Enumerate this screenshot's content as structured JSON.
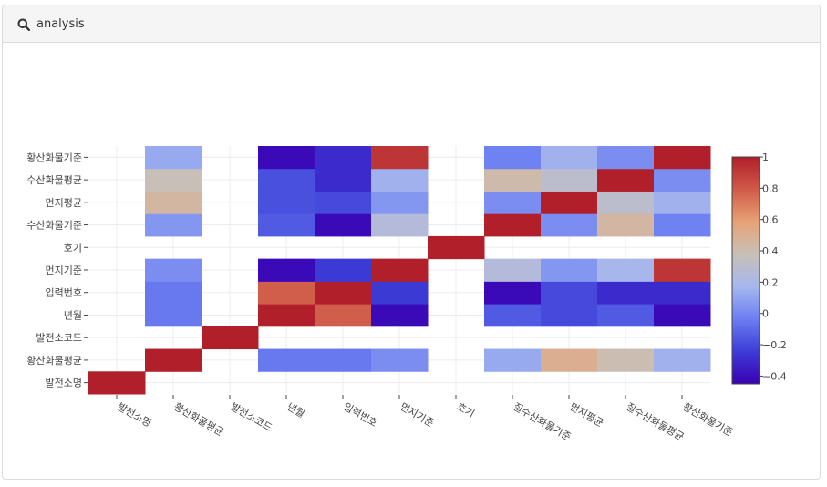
{
  "panel": {
    "title": "analysis",
    "icon": "search-icon"
  },
  "chart_data": {
    "type": "heatmap",
    "x": [
      "발전소명",
      "황산화물평균",
      "발전소코드",
      "년월",
      "입력번호",
      "먼지기준",
      "호기",
      "질수산화물기준",
      "먼지평균",
      "질수산화물평균",
      "황산화물기준"
    ],
    "y": [
      "발전소명",
      "황산화물평균",
      "발전소코드",
      "년월",
      "입력번호",
      "먼지기준",
      "호기",
      "수산화물기준",
      "먼지평균",
      "수산화물평균",
      "황산화물기준"
    ],
    "z": [
      [
        1,
        null,
        null,
        null,
        null,
        null,
        null,
        null,
        null,
        null,
        null
      ],
      [
        null,
        1,
        null,
        -0.05,
        -0.05,
        0.02,
        null,
        0.12,
        0.5,
        0.4,
        0.15
      ],
      [
        null,
        null,
        1,
        null,
        null,
        null,
        null,
        null,
        null,
        null,
        null
      ],
      [
        null,
        -0.05,
        null,
        1,
        0.78,
        -0.42,
        null,
        -0.15,
        -0.2,
        -0.15,
        -0.42
      ],
      [
        null,
        -0.05,
        null,
        0.78,
        1,
        -0.25,
        null,
        -0.42,
        -0.2,
        -0.3,
        -0.3
      ],
      [
        null,
        0.02,
        null,
        -0.42,
        -0.25,
        1,
        null,
        0.25,
        0.05,
        0.18,
        0.92
      ],
      [
        null,
        null,
        null,
        null,
        null,
        null,
        1,
        null,
        null,
        null,
        null
      ],
      [
        null,
        0.05,
        null,
        -0.15,
        -0.42,
        0.25,
        null,
        1,
        0.02,
        0.45,
        -0.02
      ],
      [
        null,
        0.45,
        null,
        -0.18,
        -0.2,
        0.05,
        null,
        0.02,
        1,
        0.3,
        0.15
      ],
      [
        null,
        0.38,
        null,
        -0.18,
        -0.3,
        0.15,
        null,
        0.42,
        0.3,
        1,
        0.02
      ],
      [
        null,
        0.12,
        null,
        -0.42,
        -0.3,
        0.92,
        null,
        -0.02,
        0.15,
        0.02,
        1
      ]
    ],
    "zlim": [
      -0.45,
      1
    ],
    "colorscale": [
      "#3a00b3",
      "#3c3cd6",
      "#6b7ef2",
      "#a6b7ee",
      "#c8c0b8",
      "#e8a276",
      "#d05a48",
      "#b01f2a"
    ],
    "colorbar_ticks": [
      1,
      0.8,
      0.6,
      0.4,
      0.2,
      0,
      -0.2,
      -0.4
    ],
    "colorbar_tick_labels": [
      "1",
      "0.8",
      "0.6",
      "0.4",
      "0.2",
      "0",
      "−0.2",
      "−0.4"
    ],
    "grid": true
  }
}
